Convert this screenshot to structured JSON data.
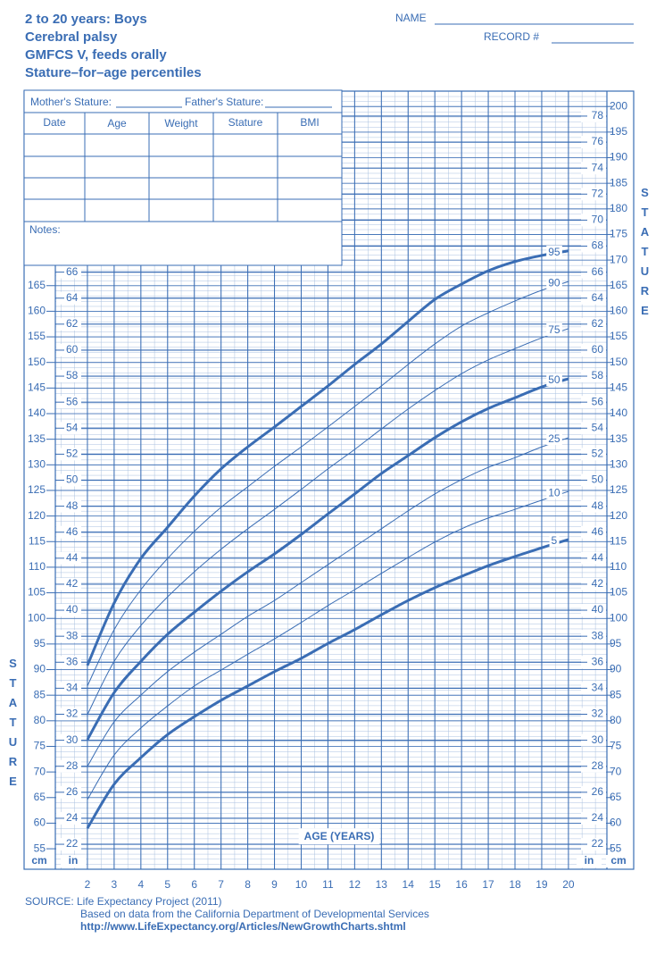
{
  "chart_data": {
    "type": "line",
    "title": [
      "2 to 20 years: Boys",
      "Cerebral palsy",
      "GMFCS V, feeds orally",
      "Stature–for–age percentiles"
    ],
    "name_label": "NAME",
    "record_label": "RECORD #",
    "form": {
      "mothers_stature": "Mother's Stature:",
      "fathers_stature": "Father's Stature:",
      "columns": [
        "Date",
        "Age",
        "Weight",
        "Stature",
        "BMI"
      ],
      "notes": "Notes:"
    },
    "xlabel": "AGE (YEARS)",
    "ylabel": "STATURE",
    "y_unit": "cm",
    "y2_unit": "in",
    "source": [
      "SOURCE:  Life Expectancy Project (2011)",
      "Based on data from the California Department of Developmental Services",
      "http://www.LifeExpectancy.org/Articles/NewGrowthCharts.shtml"
    ],
    "x": [
      2,
      3,
      4,
      5,
      6,
      7,
      8,
      9,
      10,
      11,
      12,
      13,
      14,
      15,
      16,
      17,
      18,
      19,
      20
    ],
    "xlim": [
      0.8,
      21.44
    ],
    "xticks": [
      2,
      3,
      4,
      5,
      6,
      7,
      8,
      9,
      10,
      11,
      12,
      13,
      14,
      15,
      16,
      17,
      18,
      19,
      20
    ],
    "ylim": [
      51,
      203
    ],
    "yticks": [
      55,
      60,
      65,
      70,
      75,
      80,
      85,
      90,
      95,
      100,
      105,
      110,
      115,
      120,
      125,
      130,
      135,
      140,
      145,
      150,
      155,
      160,
      165,
      170,
      175,
      180,
      185,
      190,
      195,
      200
    ],
    "y2lim": [
      20.08,
      79.92
    ],
    "y2ticks": [
      22,
      24,
      26,
      28,
      30,
      32,
      34,
      36,
      38,
      40,
      42,
      44,
      46,
      48,
      50,
      52,
      54,
      56,
      58,
      60,
      62,
      64,
      66,
      68,
      70,
      72,
      74,
      76,
      78
    ],
    "grid": true,
    "color": "#3a6db4",
    "series": [
      {
        "name": "95",
        "color": "#3a6db4",
        "line_width": 3,
        "values": [
          90.8,
          103,
          111.7,
          117.8,
          123.9,
          129.2,
          133.5,
          137.4,
          141.4,
          145.4,
          149.6,
          153.6,
          158,
          162.3,
          165.3,
          167.9,
          169.7,
          170.9,
          171.8
        ]
      },
      {
        "name": "90",
        "color": "#3a6db4",
        "line_width": 1,
        "values": [
          86.8,
          97.8,
          105.6,
          111.7,
          117,
          121.7,
          125.7,
          129.7,
          133.5,
          137.4,
          141.4,
          145.4,
          149.6,
          153.6,
          157.1,
          159.7,
          162,
          164.1,
          165.8
        ]
      },
      {
        "name": "75",
        "color": "#3a6db4",
        "line_width": 1,
        "values": [
          81.2,
          91.6,
          98.6,
          104.2,
          109.1,
          113.5,
          117.5,
          121.3,
          125.2,
          129.2,
          133,
          137,
          140.9,
          144.5,
          147.8,
          150.5,
          152.7,
          154.8,
          156.6
        ]
      },
      {
        "name": "50",
        "color": "#3a6db4",
        "line_width": 3,
        "values": [
          76.3,
          85.5,
          91.6,
          96.9,
          101.2,
          105.3,
          109.1,
          112.6,
          116.4,
          120.4,
          124.3,
          128.3,
          131.8,
          135.3,
          138.4,
          141,
          143.1,
          145.2,
          146.8
        ]
      },
      {
        "name": "25",
        "color": "#3a6db4",
        "line_width": 1,
        "values": [
          71.1,
          79.8,
          85,
          89.6,
          93.4,
          96.9,
          100.4,
          103.5,
          107,
          110.5,
          114,
          117.5,
          121,
          124.3,
          127.1,
          129.5,
          131.4,
          133.5,
          135.3
        ]
      },
      {
        "name": "10",
        "color": "#3a6db4",
        "line_width": 1,
        "values": [
          64.6,
          73.3,
          78.6,
          82.9,
          86.8,
          89.9,
          93,
          96,
          99.2,
          102.5,
          105.6,
          108.8,
          111.9,
          114.9,
          117.5,
          119.6,
          121.3,
          123.1,
          124.8
        ]
      },
      {
        "name": "5",
        "color": "#3a6db4",
        "line_width": 3,
        "values": [
          59,
          67.6,
          72.8,
          77.3,
          80.8,
          84,
          86.8,
          89.6,
          92.2,
          95.1,
          97.8,
          100.7,
          103.5,
          106,
          108.2,
          110.3,
          112.1,
          113.8,
          115.4
        ]
      }
    ]
  }
}
